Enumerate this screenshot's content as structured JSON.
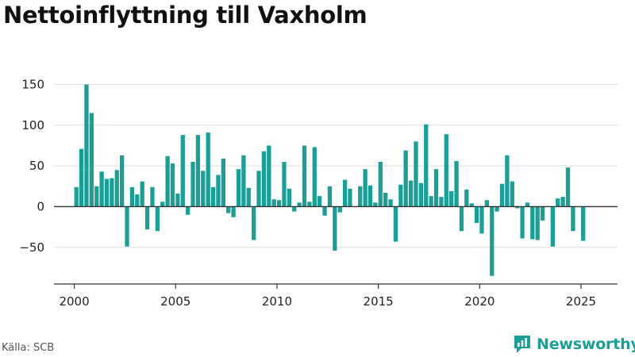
{
  "title": "Nettoinflyttning till Vaxholm",
  "source": "Källa: SCB",
  "brand": {
    "name": "Newsworthy",
    "icon": "newsworthy-logo-icon",
    "color": "#1a9e96"
  },
  "chart_data": {
    "type": "bar",
    "title": "Nettoinflyttning till Vaxholm",
    "xlabel": "",
    "ylabel": "",
    "bar_color": "#1a9e96",
    "grid": true,
    "ylim": [
      -95,
      168
    ],
    "xlim": [
      1999.0,
      2026.8
    ],
    "y_ticks": [
      -50,
      0,
      50,
      100,
      150
    ],
    "y_tick_labels": [
      "−50",
      "0",
      "50",
      "100",
      "150"
    ],
    "x_ticks": [
      2000,
      2005,
      2010,
      2015,
      2020,
      2025
    ],
    "x_tick_labels": [
      "2000",
      "2005",
      "2010",
      "2015",
      "2020",
      "2025"
    ],
    "series": [
      {
        "x": [
          "2000 Q1",
          "2000 Q2",
          "2000 Q3",
          "2000 Q4",
          "2001 Q1",
          "2001 Q2",
          "2001 Q3",
          "2001 Q4",
          "2002 Q1",
          "2002 Q2",
          "2002 Q3",
          "2002 Q4",
          "2003 Q1",
          "2003 Q2",
          "2003 Q3",
          "2003 Q4",
          "2004 Q1",
          "2004 Q2",
          "2004 Q3",
          "2004 Q4",
          "2005 Q1",
          "2005 Q2",
          "2005 Q3",
          "2005 Q4",
          "2006 Q1",
          "2006 Q2",
          "2006 Q3",
          "2006 Q4",
          "2007 Q1",
          "2007 Q2",
          "2007 Q3",
          "2007 Q4",
          "2008 Q1",
          "2008 Q2",
          "2008 Q3",
          "2008 Q4",
          "2009 Q1",
          "2009 Q2",
          "2009 Q3",
          "2009 Q4",
          "2010 Q1",
          "2010 Q2",
          "2010 Q3",
          "2010 Q4",
          "2011 Q1",
          "2011 Q2",
          "2011 Q3",
          "2011 Q4",
          "2012 Q1",
          "2012 Q2",
          "2012 Q3",
          "2012 Q4",
          "2013 Q1",
          "2013 Q2",
          "2013 Q3",
          "2013 Q4",
          "2014 Q1",
          "2014 Q2",
          "2014 Q3",
          "2014 Q4",
          "2015 Q1",
          "2015 Q2",
          "2015 Q3",
          "2015 Q4",
          "2016 Q1",
          "2016 Q2",
          "2016 Q3",
          "2016 Q4",
          "2017 Q1",
          "2017 Q2",
          "2017 Q3",
          "2017 Q4",
          "2018 Q1",
          "2018 Q2",
          "2018 Q3",
          "2018 Q4",
          "2019 Q1",
          "2019 Q2",
          "2019 Q3",
          "2019 Q4",
          "2020 Q1",
          "2020 Q2",
          "2020 Q3",
          "2020 Q4",
          "2021 Q1",
          "2021 Q2",
          "2021 Q3",
          "2021 Q4",
          "2022 Q1",
          "2022 Q2",
          "2022 Q3",
          "2022 Q4",
          "2023 Q1",
          "2023 Q2",
          "2023 Q3",
          "2023 Q4",
          "2024 Q1",
          "2024 Q2",
          "2024 Q3",
          "2024 Q4",
          "2025 Q1"
        ],
        "values": [
          24,
          71,
          150,
          115,
          25,
          43,
          34,
          35,
          45,
          63,
          -49,
          24,
          15,
          31,
          -28,
          24,
          -30,
          6,
          62,
          53,
          16,
          88,
          -10,
          55,
          88,
          44,
          91,
          24,
          39,
          59,
          -8,
          -13,
          46,
          63,
          23,
          -41,
          44,
          68,
          75,
          9,
          8,
          55,
          22,
          -6,
          5,
          75,
          6,
          73,
          13,
          -11,
          25,
          -54,
          -7,
          33,
          22,
          0,
          25,
          46,
          26,
          5,
          55,
          17,
          9,
          -43,
          27,
          69,
          32,
          80,
          29,
          101,
          13,
          46,
          12,
          89,
          19,
          56,
          -30,
          21,
          4,
          -20,
          -33,
          8,
          -85,
          -6,
          28,
          63,
          31,
          -2,
          -39,
          5,
          -40,
          -41,
          -17,
          0,
          -49,
          10,
          12,
          48,
          -30,
          0,
          -42
        ]
      }
    ]
  }
}
